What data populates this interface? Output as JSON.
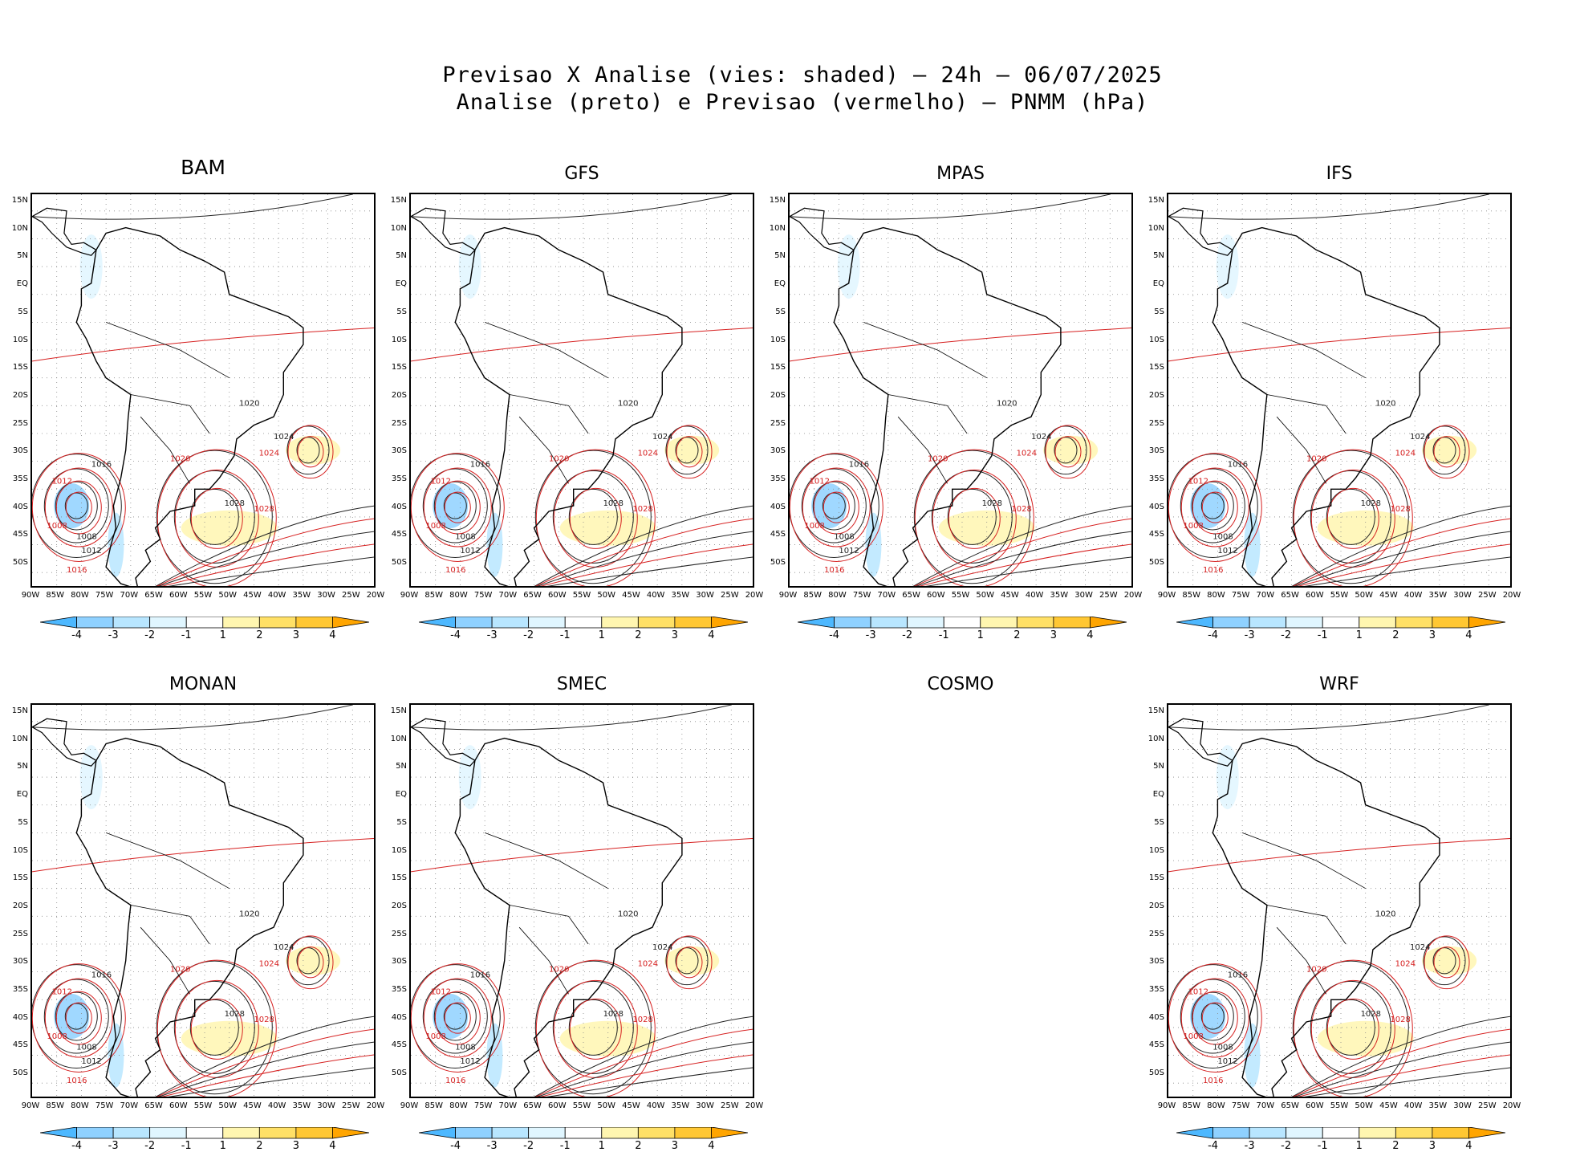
{
  "title_line1": "Previsao X Analise (vies: shaded) — 24h — 06/07/2025",
  "title_line2": "Analise (preto) e Previsao (vermelho) — PNMM (hPa)",
  "lat_labels": [
    "15N",
    "10N",
    "5N",
    "EQ",
    "5S",
    "10S",
    "15S",
    "20S",
    "25S",
    "30S",
    "35S",
    "40S",
    "45S",
    "50S"
  ],
  "lon_labels": [
    "90W",
    "85W",
    "80W",
    "75W",
    "70W",
    "65W",
    "60W",
    "55W",
    "50W",
    "45W",
    "40W",
    "35W",
    "30W",
    "25W",
    "20W"
  ],
  "colorbar": {
    "labels": [
      "-4",
      "-3",
      "-2",
      "-1",
      "1",
      "2",
      "3",
      "4"
    ],
    "colors": [
      "#4db8ff",
      "#8fd1ff",
      "#b8e6ff",
      "#e0f6ff",
      "#ffffff",
      "#fff6b0",
      "#ffe066",
      "#ffc733",
      "#ffa500"
    ]
  },
  "contour_labels": {
    "analysis": [
      "1008",
      "1012",
      "1016",
      "1020",
      "1024",
      "1028"
    ],
    "forecast": [
      "1008",
      "1012",
      "1016",
      "1020",
      "1024",
      "1028"
    ]
  },
  "panels": [
    {
      "name": "BAM"
    },
    {
      "name": "GFS"
    },
    {
      "name": "MPAS"
    },
    {
      "name": "IFS"
    },
    {
      "name": "MONAN"
    },
    {
      "name": "SMEC"
    },
    {
      "name": "COSMO"
    },
    {
      "name": "WRF"
    }
  ]
}
